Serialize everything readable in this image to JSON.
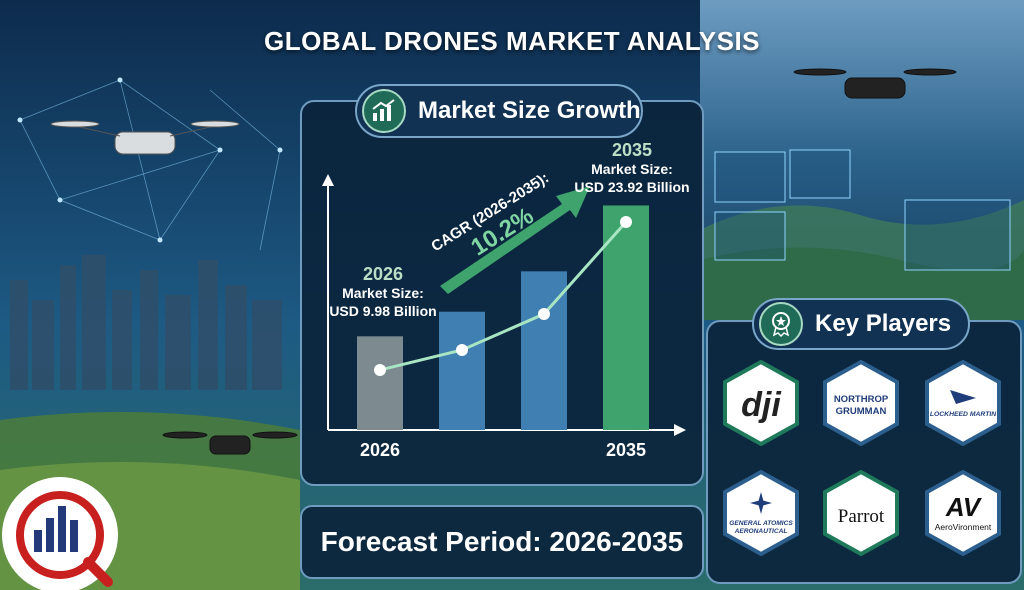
{
  "title": "GLOBAL DRONES MARKET ANALYSIS",
  "market_section": {
    "label": "Market Size Growth"
  },
  "players_section": {
    "label": "Key Players"
  },
  "forecast": {
    "text": "Forecast Period: 2026-2035"
  },
  "chart_data": {
    "type": "bar",
    "categories": [
      "2026",
      "",
      "",
      "2035"
    ],
    "values": [
      9.98,
      12.6,
      16.9,
      23.92
    ],
    "xlabel": "",
    "ylabel": "",
    "start_annotation": {
      "year": "2026",
      "line1": "Market Size:",
      "line2": "USD 9.98 Billion"
    },
    "end_annotation": {
      "year": "2035",
      "line1": "Market Size:",
      "line2": "USD 23.92 Billion"
    },
    "cagr": {
      "label": "CAGR (2026-2035):",
      "value": "10.2%"
    },
    "bar_colors": [
      "#7d8a90",
      "#3f7fb1",
      "#3f7fb1",
      "#3fa36e"
    ]
  },
  "key_players": [
    {
      "id": "dji",
      "text": "dji"
    },
    {
      "id": "northrop",
      "line1": "NORTHROP",
      "line2": "GRUMMAN"
    },
    {
      "id": "lockheed",
      "text": "LOCKHEED MARTIN"
    },
    {
      "id": "general-atomics",
      "line1": "GENERAL ATOMICS",
      "line2": "AERONAUTICAL"
    },
    {
      "id": "parrot",
      "text": "Parrot"
    },
    {
      "id": "aerovironment",
      "mark": "AV",
      "text": "AeroVironment"
    }
  ],
  "colors": {
    "accent_green": "#7fd6a2",
    "panel_border": "#6f9bbf",
    "line": "#a8e6c3"
  }
}
